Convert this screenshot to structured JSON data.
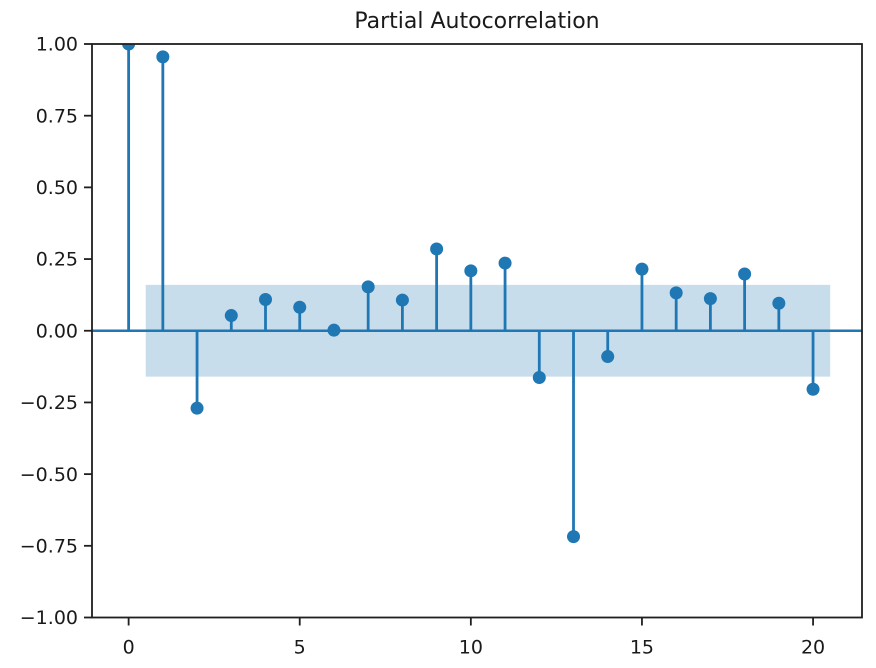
{
  "figure": {
    "title": "Partial Autocorrelation"
  },
  "chart_data": {
    "type": "stem",
    "title": "Partial Autocorrelation",
    "xlabel": "",
    "ylabel": "",
    "x": [
      0,
      1,
      2,
      3,
      4,
      5,
      6,
      7,
      8,
      9,
      10,
      11,
      12,
      13,
      14,
      15,
      16,
      17,
      18,
      19,
      20
    ],
    "values": [
      1.0,
      0.955,
      -0.27,
      0.053,
      0.109,
      0.082,
      0.002,
      0.153,
      0.107,
      0.285,
      0.209,
      0.236,
      -0.163,
      -0.718,
      -0.09,
      0.215,
      0.132,
      0.112,
      0.198,
      0.096,
      -0.204
    ],
    "xlim": [
      -1.07,
      21.43
    ],
    "ylim": [
      -1.0,
      1.0
    ],
    "xticks": {
      "values": [
        0,
        5,
        10,
        15,
        20
      ],
      "labels": [
        "0",
        "5",
        "10",
        "15",
        "20"
      ]
    },
    "yticks": {
      "values": [
        1.0,
        0.75,
        0.5,
        0.25,
        0.0,
        -0.25,
        -0.5,
        -0.75,
        -1.0
      ],
      "labels": [
        "1.00",
        "0.75",
        "0.50",
        "0.25",
        "0.00",
        "−0.25",
        "−0.50",
        "−0.75",
        "−1.00"
      ]
    },
    "confidence_band": {
      "x_start": 0.5,
      "x_end": 20.5,
      "y_low": -0.16,
      "y_high": 0.16
    },
    "colors": {
      "series": "#1f77b4",
      "band_fill": "#1f77b4",
      "band_opacity": 0.25,
      "axis": "#1f1f1f",
      "text": "#1a1a1a",
      "background": "#ffffff"
    },
    "grid": false,
    "legend": null
  }
}
